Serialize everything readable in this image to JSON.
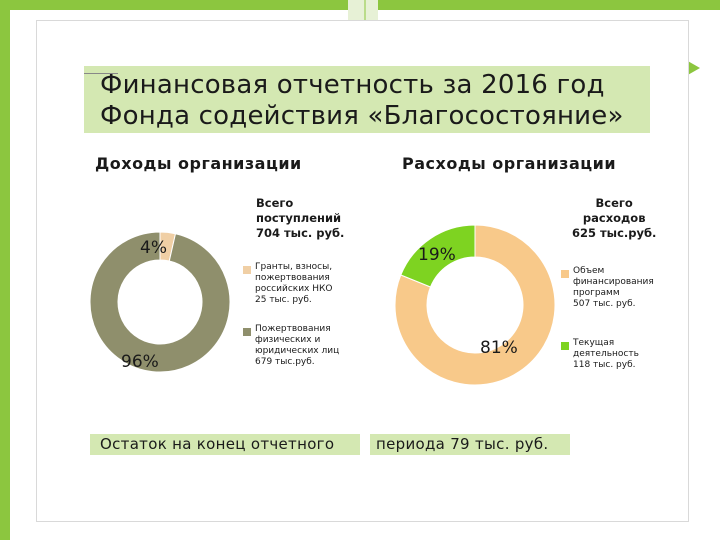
{
  "title": {
    "line1": "Финансовая отчетность за 2016 год",
    "line2": "Фонда содействия «Благосостояние»"
  },
  "colors": {
    "income_grants": "#f0cfa5",
    "income_donations": "#8f8f6c",
    "expense_programs": "#f8c98a",
    "expense_current": "#7ed321",
    "title_bg": "#d4e8b2"
  },
  "chart_data": [
    {
      "type": "pie",
      "title": "Доходы организации",
      "total_label": [
        "Всего",
        "поступлений",
        "704 тыс. руб."
      ],
      "slices": [
        {
          "label": [
            "Гранты, взносы,",
            "пожертвования",
            "российских НКО",
            "25 тыс. руб."
          ],
          "value": 25,
          "percent_label": "4%"
        },
        {
          "label": [
            "Пожертвования",
            "физических и",
            "юридических лиц",
            "679 тыс.руб."
          ],
          "value": 679,
          "percent_label": "96%"
        }
      ]
    },
    {
      "type": "pie",
      "title": "Расходы организации",
      "total_label": [
        "Всего",
        "расходов",
        "625 тыс.руб."
      ],
      "slices": [
        {
          "label": [
            "Объем",
            "финансирования",
            "программ",
            "507 тыс. руб."
          ],
          "value": 507,
          "percent_label": "81%"
        },
        {
          "label": [
            "Текущая",
            "деятельность",
            "118 тыс. руб."
          ],
          "value": 118,
          "percent_label": "19%"
        }
      ]
    }
  ],
  "footer": {
    "left": "Остаток на конец отчетного",
    "right": "периода 79 тыс. руб."
  }
}
